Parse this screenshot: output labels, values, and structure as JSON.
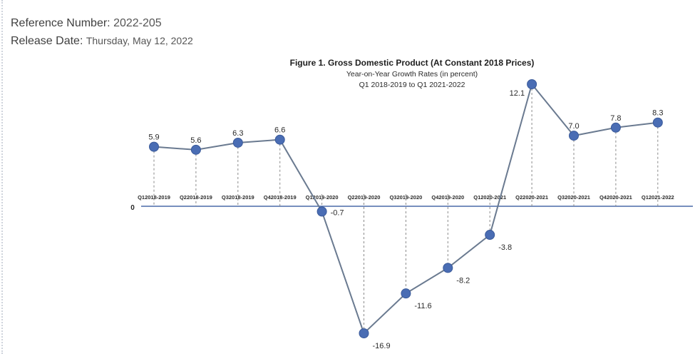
{
  "header": {
    "reference_label": "Reference Number:",
    "reference_value": "2022-205",
    "release_label": "Release Date:",
    "release_value": "Thursday, May 12, 2022"
  },
  "colors": {
    "line": "#6a7a90",
    "marker": "#4a6db4",
    "marker_stroke": "#3a5a9a",
    "axis": "#4a6aa8",
    "text": "#2a2a2a"
  },
  "chart_data": {
    "type": "line",
    "title": "Figure 1. Gross Domestic Product (At Constant 2018 Prices)",
    "subtitle": "Year-on-Year Growth Rates (in percent)",
    "subtitle2": "Q1 2018-2019 to Q1 2021-2022",
    "zero_label": "0",
    "categories": [
      "Q12018-2019",
      "Q22018-2019",
      "Q32018-2019",
      "Q42018-2019",
      "Q12019-2020",
      "Q22019-2020",
      "Q32019-2020",
      "Q42019-2020",
      "Q12020-2021",
      "Q22020-2021",
      "Q32020-2021",
      "Q42020-2021",
      "Q12021-2022"
    ],
    "values": [
      5.9,
      5.6,
      6.3,
      6.6,
      -0.7,
      -16.9,
      -11.6,
      -8.2,
      -3.8,
      12.1,
      7.0,
      7.8,
      8.3
    ],
    "value_labels": [
      "5.9",
      "5.6",
      "6.3",
      "6.6",
      "-0.7",
      "-16.9",
      "-11.6",
      "-8.2",
      "-3.8",
      "12.1",
      "7.0",
      "7.8",
      "8.3"
    ],
    "ylim": [
      -16.9,
      12.1
    ],
    "grid": false,
    "drop_lines": true
  }
}
